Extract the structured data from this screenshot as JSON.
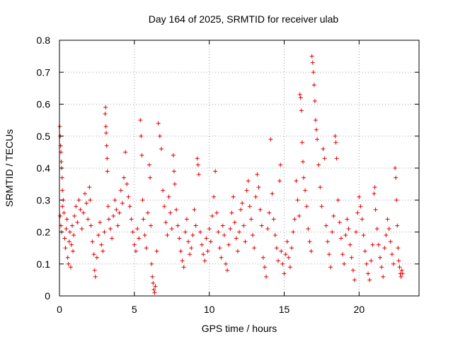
{
  "chart_data": {
    "type": "scatter",
    "title": "Day 164 of 2025, SRMTID for receiver ulab",
    "xlabel": "GPS time / hours",
    "ylabel": "SRMTID / TECUs",
    "xlim": [
      0,
      24
    ],
    "ylim": [
      0,
      0.8
    ],
    "x_ticks": [
      0,
      5,
      10,
      15,
      20
    ],
    "x_tick_labels": [
      "0",
      "5",
      "10",
      "15",
      "20"
    ],
    "y_ticks": [
      0,
      0.1,
      0.2,
      0.3,
      0.4,
      0.5,
      0.6,
      0.7,
      0.8
    ],
    "y_tick_labels": [
      "0",
      "0.1",
      "0.2",
      "0.3",
      "0.4",
      "0.5",
      "0.6",
      "0.7",
      "0.8"
    ],
    "grid": true,
    "marker": "+",
    "color": "#e00000",
    "series": [
      {
        "name": "SRMTID",
        "points": [
          [
            0.02,
            0.53
          ],
          [
            0.05,
            0.5
          ],
          [
            0.08,
            0.47
          ],
          [
            0.1,
            0.45
          ],
          [
            0.12,
            0.42
          ],
          [
            0.15,
            0.4
          ],
          [
            0.18,
            0.37
          ],
          [
            0.2,
            0.33
          ],
          [
            0.05,
            0.25
          ],
          [
            0.1,
            0.22
          ],
          [
            0.15,
            0.2
          ],
          [
            0.2,
            0.28
          ],
          [
            0.25,
            0.3
          ],
          [
            0.3,
            0.26
          ],
          [
            0.35,
            0.18
          ],
          [
            0.4,
            0.15
          ],
          [
            0.45,
            0.21
          ],
          [
            0.5,
            0.24
          ],
          [
            0.55,
            0.12
          ],
          [
            0.6,
            0.1
          ],
          [
            0.65,
            0.17
          ],
          [
            0.7,
            0.2
          ],
          [
            0.75,
            0.09
          ],
          [
            0.8,
            0.16
          ],
          [
            0.85,
            0.22
          ],
          [
            0.9,
            0.14
          ],
          [
            0.95,
            0.19
          ],
          [
            1.0,
            0.25
          ],
          [
            1.1,
            0.28
          ],
          [
            1.2,
            0.23
          ],
          [
            1.3,
            0.3
          ],
          [
            1.4,
            0.27
          ],
          [
            1.5,
            0.21
          ],
          [
            1.6,
            0.26
          ],
          [
            1.7,
            0.32
          ],
          [
            1.8,
            0.29
          ],
          [
            1.9,
            0.24
          ],
          [
            2.0,
            0.34
          ],
          [
            2.05,
            0.3
          ],
          [
            2.1,
            0.22
          ],
          [
            2.2,
            0.17
          ],
          [
            2.3,
            0.13
          ],
          [
            2.35,
            0.08
          ],
          [
            2.4,
            0.06
          ],
          [
            2.5,
            0.12
          ],
          [
            2.6,
            0.19
          ],
          [
            2.7,
            0.23
          ],
          [
            2.8,
            0.16
          ],
          [
            2.9,
            0.14
          ],
          [
            3.0,
            0.2
          ],
          [
            3.05,
            0.57
          ],
          [
            3.08,
            0.59
          ],
          [
            3.1,
            0.53
          ],
          [
            3.12,
            0.51
          ],
          [
            3.15,
            0.47
          ],
          [
            3.18,
            0.43
          ],
          [
            3.2,
            0.39
          ],
          [
            3.25,
            0.28
          ],
          [
            3.3,
            0.24
          ],
          [
            3.4,
            0.21
          ],
          [
            3.5,
            0.18
          ],
          [
            3.6,
            0.25
          ],
          [
            3.7,
            0.3
          ],
          [
            3.8,
            0.27
          ],
          [
            3.9,
            0.22
          ],
          [
            4.0,
            0.26
          ],
          [
            4.1,
            0.33
          ],
          [
            4.2,
            0.29
          ],
          [
            4.3,
            0.37
          ],
          [
            4.4,
            0.45
          ],
          [
            4.5,
            0.35
          ],
          [
            4.6,
            0.31
          ],
          [
            4.7,
            0.28
          ],
          [
            4.8,
            0.24
          ],
          [
            4.9,
            0.2
          ],
          [
            5.0,
            0.16
          ],
          [
            5.1,
            0.14
          ],
          [
            5.2,
            0.21
          ],
          [
            5.3,
            0.18
          ],
          [
            5.4,
            0.55
          ],
          [
            5.45,
            0.5
          ],
          [
            5.5,
            0.44
          ],
          [
            5.55,
            0.3
          ],
          [
            5.6,
            0.24
          ],
          [
            5.7,
            0.19
          ],
          [
            5.8,
            0.15
          ],
          [
            5.9,
            0.26
          ],
          [
            6.0,
            0.41
          ],
          [
            6.05,
            0.37
          ],
          [
            6.1,
            0.22
          ],
          [
            6.15,
            0.1
          ],
          [
            6.2,
            0.06
          ],
          [
            6.25,
            0.04
          ],
          [
            6.3,
            0.02
          ],
          [
            6.35,
            0.01
          ],
          [
            6.4,
            0.03
          ],
          [
            6.5,
            0.14
          ],
          [
            6.6,
            0.54
          ],
          [
            6.7,
            0.5
          ],
          [
            6.8,
            0.46
          ],
          [
            6.9,
            0.33
          ],
          [
            7.0,
            0.28
          ],
          [
            7.1,
            0.23
          ],
          [
            7.2,
            0.19
          ],
          [
            7.3,
            0.31
          ],
          [
            7.4,
            0.26
          ],
          [
            7.5,
            0.21
          ],
          [
            7.6,
            0.44
          ],
          [
            7.65,
            0.39
          ],
          [
            7.7,
            0.35
          ],
          [
            7.8,
            0.27
          ],
          [
            7.9,
            0.22
          ],
          [
            8.0,
            0.18
          ],
          [
            8.1,
            0.14
          ],
          [
            8.2,
            0.11
          ],
          [
            8.3,
            0.09
          ],
          [
            8.4,
            0.2
          ],
          [
            8.5,
            0.24
          ],
          [
            8.6,
            0.17
          ],
          [
            8.7,
            0.13
          ],
          [
            8.8,
            0.15
          ],
          [
            8.9,
            0.19
          ],
          [
            9.0,
            0.27
          ],
          [
            9.1,
            0.22
          ],
          [
            9.2,
            0.43
          ],
          [
            9.25,
            0.41
          ],
          [
            9.3,
            0.38
          ],
          [
            9.4,
            0.2
          ],
          [
            9.5,
            0.16
          ],
          [
            9.6,
            0.13
          ],
          [
            9.7,
            0.11
          ],
          [
            9.8,
            0.18
          ],
          [
            9.9,
            0.14
          ],
          [
            10.0,
            0.21
          ],
          [
            10.1,
            0.17
          ],
          [
            10.2,
            0.25
          ],
          [
            10.3,
            0.31
          ],
          [
            10.4,
            0.39
          ],
          [
            10.5,
            0.26
          ],
          [
            10.6,
            0.2
          ],
          [
            10.7,
            0.15
          ],
          [
            10.8,
            0.12
          ],
          [
            10.9,
            0.22
          ],
          [
            11.0,
            0.19
          ],
          [
            11.1,
            0.1
          ],
          [
            11.2,
            0.08
          ],
          [
            11.3,
            0.16
          ],
          [
            11.4,
            0.21
          ],
          [
            11.5,
            0.26
          ],
          [
            11.6,
            0.31
          ],
          [
            11.7,
            0.23
          ],
          [
            11.8,
            0.18
          ],
          [
            11.9,
            0.14
          ],
          [
            12.0,
            0.2
          ],
          [
            12.1,
            0.27
          ],
          [
            12.2,
            0.29
          ],
          [
            12.3,
            0.22
          ],
          [
            12.4,
            0.17
          ],
          [
            12.5,
            0.33
          ],
          [
            12.6,
            0.36
          ],
          [
            12.7,
            0.28
          ],
          [
            12.8,
            0.24
          ],
          [
            12.9,
            0.19
          ],
          [
            13.0,
            0.15
          ],
          [
            13.1,
            0.31
          ],
          [
            13.2,
            0.38
          ],
          [
            13.3,
            0.34
          ],
          [
            13.4,
            0.27
          ],
          [
            13.5,
            0.22
          ],
          [
            13.6,
            0.12
          ],
          [
            13.7,
            0.09
          ],
          [
            13.8,
            0.06
          ],
          [
            13.9,
            0.21
          ],
          [
            14.0,
            0.26
          ],
          [
            14.1,
            0.49
          ],
          [
            14.2,
            0.32
          ],
          [
            14.3,
            0.24
          ],
          [
            14.4,
            0.19
          ],
          [
            14.5,
            0.15
          ],
          [
            14.6,
            0.11
          ],
          [
            14.7,
            0.36
          ],
          [
            14.75,
            0.41
          ],
          [
            14.8,
            0.14
          ],
          [
            14.9,
            0.1
          ],
          [
            15.0,
            0.07
          ],
          [
            15.1,
            0.13
          ],
          [
            15.2,
            0.17
          ],
          [
            15.3,
            0.12
          ],
          [
            15.4,
            0.09
          ],
          [
            15.5,
            0.15
          ],
          [
            15.6,
            0.2
          ],
          [
            15.7,
            0.24
          ],
          [
            15.8,
            0.36
          ],
          [
            15.9,
            0.3
          ],
          [
            16.0,
            0.25
          ],
          [
            16.05,
            0.63
          ],
          [
            16.1,
            0.62
          ],
          [
            16.15,
            0.58
          ],
          [
            16.2,
            0.48
          ],
          [
            16.25,
            0.42
          ],
          [
            16.3,
            0.37
          ],
          [
            16.4,
            0.33
          ],
          [
            16.5,
            0.28
          ],
          [
            16.6,
            0.21
          ],
          [
            16.7,
            0.17
          ],
          [
            16.8,
            0.14
          ],
          [
            16.85,
            0.75
          ],
          [
            16.9,
            0.73
          ],
          [
            16.95,
            0.7
          ],
          [
            17.0,
            0.66
          ],
          [
            17.05,
            0.61
          ],
          [
            17.1,
            0.55
          ],
          [
            17.15,
            0.52
          ],
          [
            17.2,
            0.49
          ],
          [
            17.3,
            0.41
          ],
          [
            17.4,
            0.34
          ],
          [
            17.5,
            0.28
          ],
          [
            17.6,
            0.46
          ],
          [
            17.7,
            0.43
          ],
          [
            17.8,
            0.22
          ],
          [
            17.9,
            0.17
          ],
          [
            18.0,
            0.13
          ],
          [
            18.1,
            0.09
          ],
          [
            18.2,
            0.2
          ],
          [
            18.3,
            0.25
          ],
          [
            18.4,
            0.5
          ],
          [
            18.45,
            0.48
          ],
          [
            18.5,
            0.43
          ],
          [
            18.6,
            0.3
          ],
          [
            18.7,
            0.23
          ],
          [
            18.8,
            0.18
          ],
          [
            18.9,
            0.13
          ],
          [
            19.0,
            0.1
          ],
          [
            19.1,
            0.19
          ],
          [
            19.2,
            0.24
          ],
          [
            19.3,
            0.21
          ],
          [
            19.4,
            0.16
          ],
          [
            19.5,
            0.12
          ],
          [
            19.6,
            0.08
          ],
          [
            19.7,
            0.05
          ],
          [
            19.8,
            0.2
          ],
          [
            19.9,
            0.26
          ],
          [
            20.0,
            0.31
          ],
          [
            20.1,
            0.28
          ],
          [
            20.2,
            0.24
          ],
          [
            20.3,
            0.19
          ],
          [
            20.4,
            0.14
          ],
          [
            20.5,
            0.1
          ],
          [
            20.6,
            0.07
          ],
          [
            20.7,
            0.05
          ],
          [
            20.8,
            0.11
          ],
          [
            20.9,
            0.16
          ],
          [
            21.0,
            0.32
          ],
          [
            21.05,
            0.34
          ],
          [
            21.1,
            0.27
          ],
          [
            21.2,
            0.21
          ],
          [
            21.3,
            0.16
          ],
          [
            21.4,
            0.12
          ],
          [
            21.5,
            0.09
          ],
          [
            21.6,
            0.06
          ],
          [
            21.7,
            0.15
          ],
          [
            21.8,
            0.19
          ],
          [
            21.9,
            0.24
          ],
          [
            22.0,
            0.21
          ],
          [
            22.1,
            0.17
          ],
          [
            22.2,
            0.13
          ],
          [
            22.3,
            0.1
          ],
          [
            22.4,
            0.4
          ],
          [
            22.45,
            0.37
          ],
          [
            22.5,
            0.3
          ],
          [
            22.55,
            0.22
          ],
          [
            22.6,
            0.15
          ],
          [
            22.65,
            0.11
          ],
          [
            22.7,
            0.09
          ],
          [
            22.75,
            0.07
          ],
          [
            22.8,
            0.06
          ],
          [
            22.85,
            0.08
          ],
          [
            22.9,
            0.07
          ]
        ]
      }
    ]
  }
}
